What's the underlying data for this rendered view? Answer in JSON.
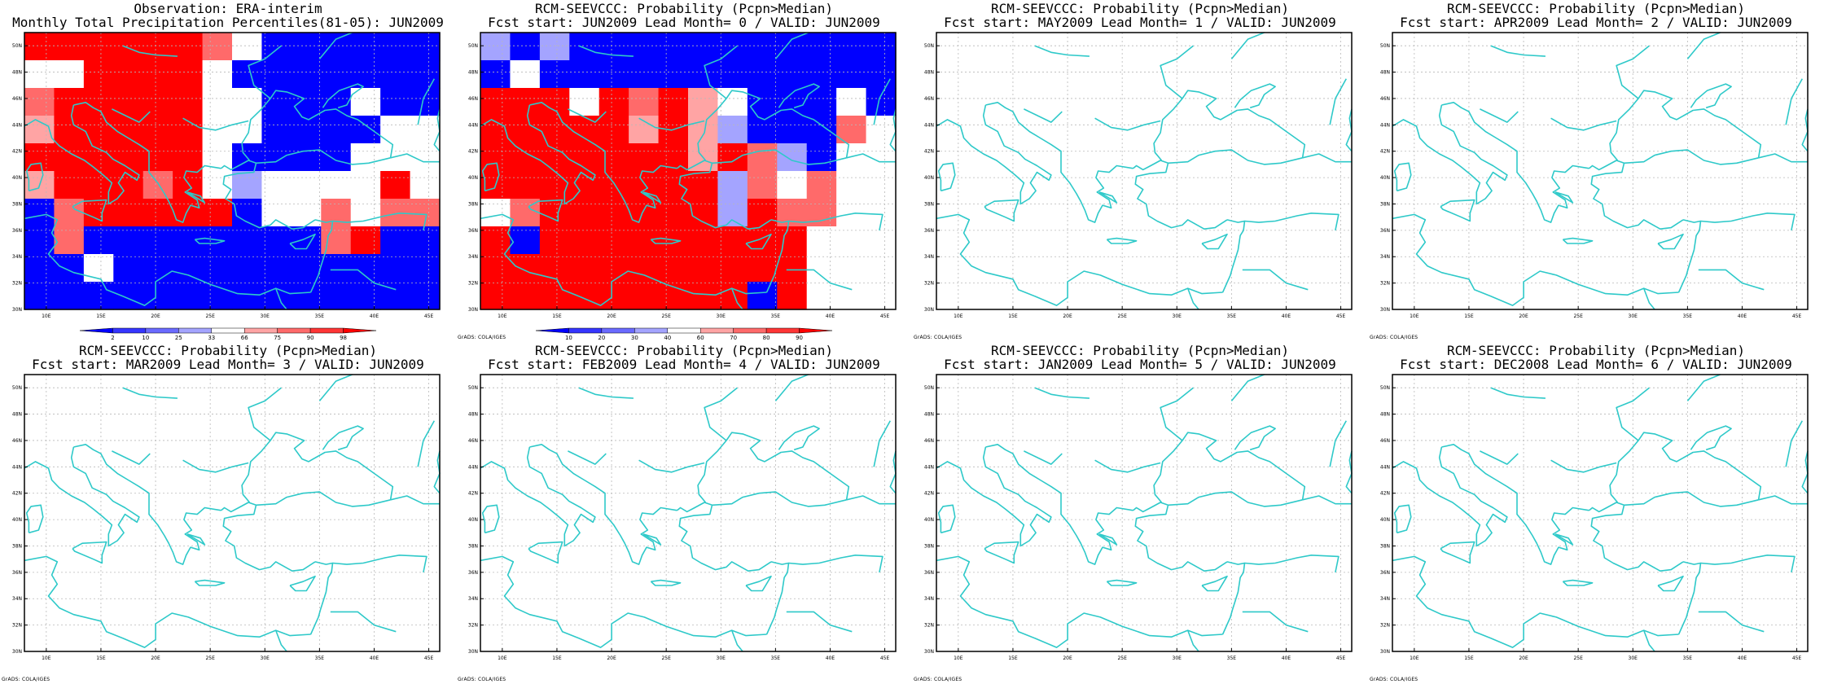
{
  "colors": {
    "coast": "#2ec9c9",
    "frame": "#000000",
    "grid": "#b8b8b8",
    "dry_high": "#0000ff",
    "wet_high": "#ff0000"
  },
  "map_extent": {
    "lon": [
      8,
      46
    ],
    "lat": [
      30,
      51
    ],
    "lon_ticks": [
      10,
      15,
      20,
      25,
      30,
      35,
      40,
      45
    ],
    "lat_ticks": [
      30,
      32,
      34,
      36,
      38,
      40,
      42,
      44,
      46,
      48,
      50
    ]
  },
  "panels": [
    {
      "title_line1": "Observation: ERA-interim",
      "title_line2": "Monthly Total Precipitation Percentiles(81-05): JUN2009",
      "has_data": true,
      "colorbar": {
        "labels": [
          "2",
          "10",
          "25",
          "33",
          "66",
          "75",
          "90",
          "98"
        ],
        "colors": [
          "#0000ff",
          "#3535ff",
          "#6a6aff",
          "#a4a4ff",
          "#ffffff",
          "#ffa4a4",
          "#ff6a6a",
          "#ff3535",
          "#ff0000"
        ]
      },
      "credit": ""
    },
    {
      "title_line1": "RCM-SEEVCCC: Probability (Pcpn>Median)",
      "title_line2": "Fcst start: JUN2009  Lead Month= 0 / VALID: JUN2009",
      "has_data": true,
      "colorbar": {
        "labels": [
          "10",
          "20",
          "30",
          "40",
          "60",
          "70",
          "80",
          "90"
        ],
        "colors": [
          "#0000ff",
          "#3535ff",
          "#6a6aff",
          "#a4a4ff",
          "#ffffff",
          "#ffa4a4",
          "#ff6a6a",
          "#ff3535",
          "#ff0000"
        ]
      },
      "credit": "GrADS: COLA/IGES"
    },
    {
      "title_line1": "RCM-SEEVCCC: Probability (Pcpn>Median)",
      "title_line2": "Fcst start: MAY2009  Lead Month= 1 / VALID: JUN2009",
      "has_data": false,
      "credit": "GrADS: COLA/IGES"
    },
    {
      "title_line1": "RCM-SEEVCCC: Probability (Pcpn>Median)",
      "title_line2": "Fcst start: APR2009  Lead Month= 2 / VALID: JUN2009",
      "has_data": false,
      "credit": "GrADS: COLA/IGES"
    },
    {
      "title_line1": "RCM-SEEVCCC: Probability (Pcpn>Median)",
      "title_line2": "Fcst start: MAR2009  Lead Month= 3 / VALID: JUN2009",
      "has_data": false,
      "credit": "GrADS: COLA/IGES"
    },
    {
      "title_line1": "RCM-SEEVCCC: Probability (Pcpn>Median)",
      "title_line2": "Fcst start: FEB2009  Lead Month= 4 / VALID: JUN2009",
      "has_data": false,
      "credit": "GrADS: COLA/IGES"
    },
    {
      "title_line1": "RCM-SEEVCCC: Probability (Pcpn>Median)",
      "title_line2": "Fcst start: JAN2009  Lead Month= 5 / VALID: JUN2009",
      "has_data": false,
      "credit": "GrADS: COLA/IGES"
    },
    {
      "title_line1": "RCM-SEEVCCC: Probability (Pcpn>Median)",
      "title_line2": "Fcst start: DEC2008  Lead Month= 6 / VALID: JUN2009",
      "has_data": false,
      "credit": "GrADS: COLA/IGES"
    }
  ],
  "grid_data": {
    "panel_0": [
      "RRRRRRMWBBBBBB",
      "WWRRRRWBBBBBBB",
      "MRRRRRWWBBBWBB",
      "PRRRRRWWBBBBWW",
      "RRRRRRWBBBBWWW",
      "PRRRMRWLWWWWRW",
      "BMRRRRRBWWMWMM",
      "BMBBBBBBBBMRBB",
      "BBWBBBBBBBBBBB",
      "BBBBBBBBBBBBBB"
    ],
    "panel_1": [
      "LBLBBBBBBBBBBB",
      "BWBBBBBBBBBBBB",
      "RRRWRMRPWBBBWB",
      "RRRRRPRPLBBBMW",
      "RRRRRRRPRMLBWW",
      "RRRRRRRRLMWMWW",
      "WMRRRRRRLRMMWW",
      "RBRRRRRRRRRWWW",
      "RRRRRRRRRRRWWW",
      "RRRRRRRRRBRWWW"
    ]
  },
  "grid_legend": {
    "B": "#0000ff",
    "L": "#a4a4ff",
    "W": "#ffffff",
    "P": "#ffa4a4",
    "M": "#ff6a6a",
    "R": "#ff0000"
  }
}
